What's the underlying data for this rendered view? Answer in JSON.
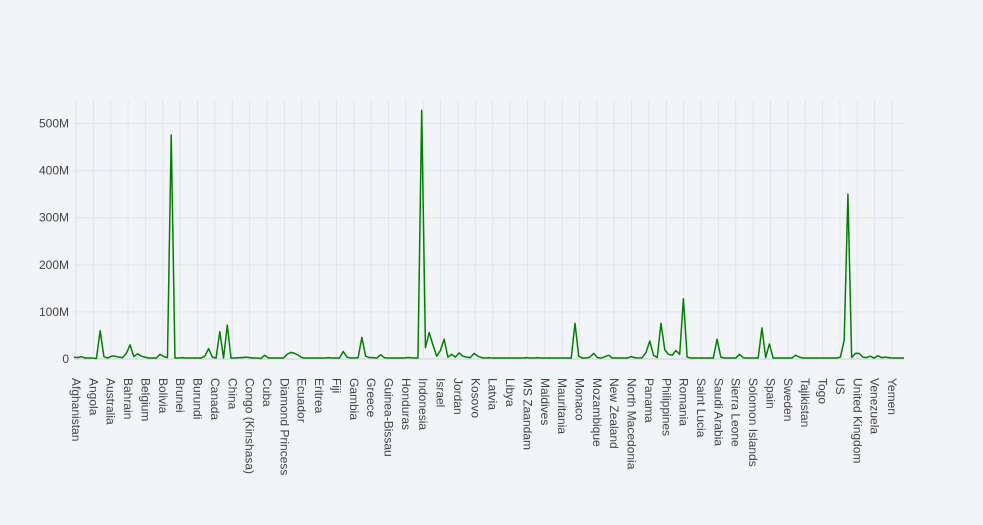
{
  "chart_data": {
    "type": "line",
    "title": "",
    "xlabel": "",
    "ylabel": "",
    "line_color": "#008000",
    "grid": true,
    "ylim": [
      0,
      550
    ],
    "y_ticks": [
      0,
      100,
      200,
      300,
      400,
      500
    ],
    "y_tick_labels": [
      "0",
      "100M",
      "200M",
      "300M",
      "400M",
      "500M"
    ],
    "y_unit_note": "values in millions",
    "x_tick_labels": [
      "Afghanistan",
      "Angola",
      "Australia",
      "Bahrain",
      "Belgium",
      "Bolivia",
      "Brunei",
      "Burundi",
      "Canada",
      "China",
      "Congo (Kinshasa)",
      "Cuba",
      "Diamond Princess",
      "Ecuador",
      "Eritrea",
      "Fiji",
      "Gambia",
      "Greece",
      "Guinea-Bissau",
      "Honduras",
      "Indonesia",
      "Israel",
      "Jordan",
      "Kosovo",
      "Latvia",
      "Libya",
      "MS Zaandam",
      "Maldives",
      "Mauritania",
      "Monaco",
      "Mozambique",
      "New Zealand",
      "North Macedonia",
      "Panama",
      "Philippines",
      "Romania",
      "Saint Lucia",
      "Saudi Arabia",
      "Sierra Leone",
      "Solomon Islands",
      "Spain",
      "Sweden",
      "Tajikistan",
      "Togo",
      "US",
      "United Kingdom",
      "Venezuela",
      "Yemen"
    ],
    "series": [
      {
        "values": [
          4,
          3,
          5,
          2,
          2,
          2,
          1,
          60,
          5,
          2,
          6,
          6,
          4,
          3,
          12,
          30,
          5,
          11,
          6,
          4,
          2,
          2,
          2,
          10,
          5,
          3,
          476,
          2,
          2,
          3,
          2,
          2,
          2,
          2,
          2,
          6,
          22,
          4,
          2,
          58,
          2,
          72,
          2,
          2,
          3,
          3,
          4,
          3,
          2,
          2,
          1,
          8,
          2,
          2,
          2,
          2,
          2,
          10,
          14,
          12,
          8,
          3,
          2,
          2,
          2,
          2,
          2,
          2,
          3,
          2,
          2,
          2,
          16,
          4,
          2,
          2,
          3,
          46,
          6,
          3,
          3,
          2,
          9,
          3,
          2,
          2,
          2,
          2,
          2,
          3,
          3,
          2,
          2,
          528,
          24,
          56,
          30,
          6,
          18,
          42,
          4,
          10,
          4,
          13,
          6,
          4,
          3,
          12,
          6,
          3,
          2,
          3,
          2,
          2,
          2,
          2,
          2,
          2,
          2,
          2,
          2,
          3,
          2,
          2,
          3,
          2,
          2,
          2,
          2,
          2,
          2,
          2,
          2,
          2,
          76,
          6,
          2,
          2,
          4,
          12,
          3,
          2,
          5,
          8,
          2,
          2,
          2,
          2,
          2,
          5,
          3,
          2,
          3,
          14,
          38,
          8,
          3,
          76,
          20,
          10,
          8,
          18,
          10,
          128,
          4,
          2,
          2,
          2,
          2,
          2,
          2,
          2,
          42,
          4,
          2,
          2,
          2,
          2,
          10,
          3,
          2,
          2,
          2,
          2,
          66,
          3,
          32,
          2,
          2,
          2,
          2,
          2,
          2,
          8,
          4,
          2,
          2,
          2,
          2,
          2,
          2,
          2,
          2,
          2,
          2,
          4,
          40,
          350,
          3,
          12,
          12,
          4,
          3,
          6,
          2,
          7,
          3,
          4,
          3,
          2,
          2,
          2,
          2
        ]
      }
    ]
  }
}
